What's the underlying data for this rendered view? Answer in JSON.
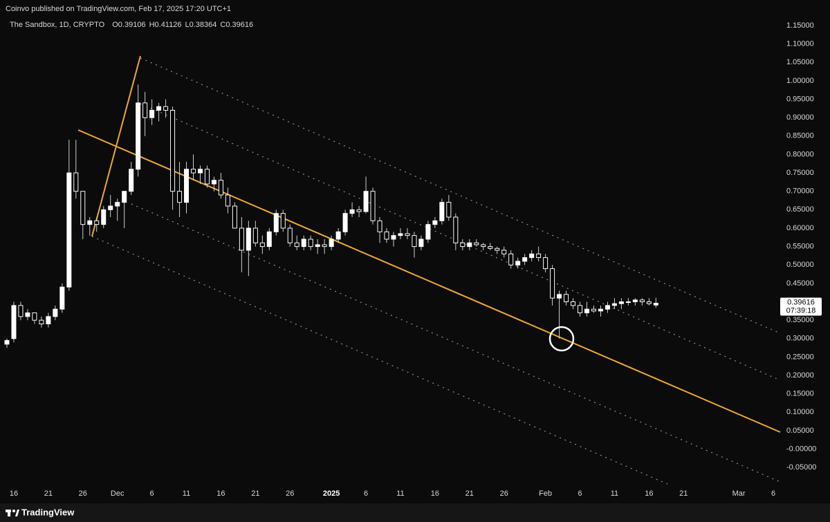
{
  "chart_data": {
    "type": "candlestick",
    "source": "Coinvo published on TradingView.com, Feb 17, 2025 17:20 UTC+1",
    "title": "The Sandbox, 1D, CRYPTO",
    "ohlc_prefixes": [
      "O",
      "H",
      "L",
      "C"
    ],
    "x": [
      "2024-11-15",
      "2024-11-16",
      "2024-11-17",
      "2024-11-18",
      "2024-11-19",
      "2024-11-20",
      "2024-11-21",
      "2024-11-22",
      "2024-11-23",
      "2024-11-24",
      "2024-11-25",
      "2024-11-26",
      "2024-11-27",
      "2024-11-28",
      "2024-11-29",
      "2024-11-30",
      "2024-12-01",
      "2024-12-02",
      "2024-12-03",
      "2024-12-04",
      "2024-12-05",
      "2024-12-06",
      "2024-12-07",
      "2024-12-08",
      "2024-12-09",
      "2024-12-10",
      "2024-12-11",
      "2024-12-12",
      "2024-12-13",
      "2024-12-14",
      "2024-12-15",
      "2024-12-16",
      "2024-12-17",
      "2024-12-18",
      "2024-12-19",
      "2024-12-20",
      "2024-12-21",
      "2024-12-22",
      "2024-12-23",
      "2024-12-24",
      "2024-12-25",
      "2024-12-26",
      "2024-12-27",
      "2024-12-28",
      "2024-12-29",
      "2024-12-30",
      "2024-12-31",
      "2025-01-01",
      "2025-01-02",
      "2025-01-03",
      "2025-01-04",
      "2025-01-05",
      "2025-01-06",
      "2025-01-07",
      "2025-01-08",
      "2025-01-09",
      "2025-01-10",
      "2025-01-11",
      "2025-01-12",
      "2025-01-13",
      "2025-01-14",
      "2025-01-15",
      "2025-01-16",
      "2025-01-17",
      "2025-01-18",
      "2025-01-19",
      "2025-01-20",
      "2025-01-21",
      "2025-01-22",
      "2025-01-23",
      "2025-01-24",
      "2025-01-25",
      "2025-01-26",
      "2025-01-27",
      "2025-01-28",
      "2025-01-29",
      "2025-01-30",
      "2025-01-31",
      "2025-02-01",
      "2025-02-02",
      "2025-02-03",
      "2025-02-04",
      "2025-02-05",
      "2025-02-06",
      "2025-02-07",
      "2025-02-08",
      "2025-02-09",
      "2025-02-10",
      "2025-02-11",
      "2025-02-12",
      "2025-02-13",
      "2025-02-14",
      "2025-02-15",
      "2025-02-16",
      "2025-02-17"
    ],
    "open": [
      0.285,
      0.3,
      0.39,
      0.36,
      0.37,
      0.35,
      0.34,
      0.36,
      0.38,
      0.44,
      0.75,
      0.7,
      0.61,
      0.62,
      0.61,
      0.65,
      0.66,
      0.67,
      0.7,
      0.76,
      0.94,
      0.9,
      0.92,
      0.93,
      0.92,
      0.7,
      0.67,
      0.76,
      0.75,
      0.76,
      0.72,
      0.73,
      0.69,
      0.66,
      0.6,
      0.54,
      0.6,
      0.56,
      0.55,
      0.59,
      0.64,
      0.6,
      0.56,
      0.55,
      0.57,
      0.55,
      0.555,
      0.55,
      0.57,
      0.59,
      0.64,
      0.65,
      0.645,
      0.7,
      0.62,
      0.59,
      0.57,
      0.58,
      0.585,
      0.58,
      0.55,
      0.57,
      0.61,
      0.62,
      0.67,
      0.63,
      0.56,
      0.55,
      0.56,
      0.555,
      0.55,
      0.545,
      0.54,
      0.53,
      0.5,
      0.51,
      0.52,
      0.53,
      0.52,
      0.49,
      0.41,
      0.42,
      0.4,
      0.39,
      0.37,
      0.38,
      0.375,
      0.38,
      0.39,
      0.395,
      0.4,
      0.4,
      0.405,
      0.4,
      0.39106
    ],
    "high": [
      0.3,
      0.4,
      0.4,
      0.38,
      0.37,
      0.36,
      0.37,
      0.39,
      0.45,
      0.84,
      0.84,
      0.7,
      0.63,
      0.63,
      0.66,
      0.69,
      0.68,
      0.7,
      0.78,
      0.99,
      0.97,
      0.95,
      0.94,
      0.95,
      0.93,
      0.78,
      0.78,
      0.8,
      0.77,
      0.77,
      0.74,
      0.75,
      0.71,
      0.67,
      0.63,
      0.62,
      0.62,
      0.58,
      0.6,
      0.65,
      0.65,
      0.61,
      0.58,
      0.58,
      0.58,
      0.57,
      0.57,
      0.58,
      0.6,
      0.65,
      0.67,
      0.66,
      0.74,
      0.71,
      0.63,
      0.6,
      0.59,
      0.6,
      0.6,
      0.59,
      0.58,
      0.62,
      0.63,
      0.68,
      0.69,
      0.64,
      0.57,
      0.57,
      0.57,
      0.56,
      0.56,
      0.55,
      0.55,
      0.54,
      0.52,
      0.53,
      0.54,
      0.55,
      0.53,
      0.5,
      0.43,
      0.43,
      0.41,
      0.4,
      0.4,
      0.39,
      0.39,
      0.4,
      0.41,
      0.41,
      0.41,
      0.41,
      0.41,
      0.41,
      0.41126
    ],
    "low": [
      0.275,
      0.29,
      0.35,
      0.35,
      0.34,
      0.33,
      0.33,
      0.35,
      0.37,
      0.43,
      0.68,
      0.57,
      0.58,
      0.59,
      0.6,
      0.63,
      0.62,
      0.6,
      0.69,
      0.74,
      0.85,
      0.88,
      0.89,
      0.9,
      0.65,
      0.63,
      0.64,
      0.73,
      0.72,
      0.71,
      0.7,
      0.68,
      0.64,
      0.6,
      0.48,
      0.47,
      0.55,
      0.53,
      0.54,
      0.58,
      0.59,
      0.55,
      0.54,
      0.54,
      0.54,
      0.53,
      0.53,
      0.54,
      0.56,
      0.58,
      0.63,
      0.63,
      0.64,
      0.61,
      0.56,
      0.56,
      0.55,
      0.57,
      0.57,
      0.52,
      0.54,
      0.56,
      0.6,
      0.61,
      0.62,
      0.54,
      0.54,
      0.54,
      0.55,
      0.54,
      0.54,
      0.53,
      0.52,
      0.49,
      0.49,
      0.5,
      0.51,
      0.51,
      0.48,
      0.39,
      0.3,
      0.39,
      0.38,
      0.36,
      0.36,
      0.37,
      0.36,
      0.37,
      0.38,
      0.38,
      0.39,
      0.39,
      0.39,
      0.39,
      0.38364
    ],
    "close": [
      0.295,
      0.39,
      0.36,
      0.37,
      0.35,
      0.34,
      0.36,
      0.38,
      0.44,
      0.75,
      0.7,
      0.61,
      0.62,
      0.61,
      0.65,
      0.66,
      0.67,
      0.7,
      0.76,
      0.94,
      0.9,
      0.92,
      0.93,
      0.92,
      0.7,
      0.67,
      0.76,
      0.75,
      0.76,
      0.72,
      0.73,
      0.69,
      0.66,
      0.6,
      0.54,
      0.6,
      0.56,
      0.55,
      0.59,
      0.64,
      0.6,
      0.56,
      0.55,
      0.57,
      0.55,
      0.555,
      0.55,
      0.57,
      0.59,
      0.64,
      0.65,
      0.645,
      0.7,
      0.62,
      0.59,
      0.57,
      0.58,
      0.585,
      0.58,
      0.55,
      0.57,
      0.61,
      0.62,
      0.67,
      0.63,
      0.56,
      0.55,
      0.56,
      0.555,
      0.55,
      0.545,
      0.54,
      0.53,
      0.5,
      0.51,
      0.52,
      0.53,
      0.52,
      0.49,
      0.41,
      0.42,
      0.4,
      0.39,
      0.37,
      0.38,
      0.375,
      0.38,
      0.39,
      0.395,
      0.4,
      0.4,
      0.405,
      0.4,
      0.395,
      0.39616
    ],
    "up_color": "#ffffff",
    "down_color": "#000000",
    "countdown": "07:39:18",
    "brand": "TradingView",
    "grid": false,
    "xlim": [
      "2024-11-14",
      "2025-03-07"
    ],
    "xticks": [
      {
        "value": "2024-11-16",
        "label": "16"
      },
      {
        "value": "2024-11-21",
        "label": "21"
      },
      {
        "value": "2024-11-26",
        "label": "26"
      },
      {
        "value": "2024-12-01",
        "label": "Dec"
      },
      {
        "value": "2024-12-06",
        "label": "6"
      },
      {
        "value": "2024-12-11",
        "label": "11"
      },
      {
        "value": "2024-12-16",
        "label": "16"
      },
      {
        "value": "2024-12-21",
        "label": "21"
      },
      {
        "value": "2024-12-26",
        "label": "26"
      },
      {
        "value": "2025-01-01",
        "label": "2025"
      },
      {
        "value": "2025-01-06",
        "label": "6"
      },
      {
        "value": "2025-01-11",
        "label": "11"
      },
      {
        "value": "2025-01-16",
        "label": "16"
      },
      {
        "value": "2025-01-21",
        "label": "21"
      },
      {
        "value": "2025-01-26",
        "label": "26"
      },
      {
        "value": "2025-02-01",
        "label": "Feb"
      },
      {
        "value": "2025-02-06",
        "label": "6"
      },
      {
        "value": "2025-02-11",
        "label": "11"
      },
      {
        "value": "2025-02-16",
        "label": "16"
      },
      {
        "value": "2025-02-21",
        "label": "21"
      },
      {
        "value": "2025-03-01",
        "label": "Mar"
      },
      {
        "value": "2025-03-06",
        "label": "6"
      }
    ],
    "ylim": [
      -0.104,
      1.1725
    ],
    "yticks": [
      {
        "value": 1.15,
        "label": "1.15000"
      },
      {
        "value": 1.1,
        "label": "1.10000"
      },
      {
        "value": 1.05,
        "label": "1.05000"
      },
      {
        "value": 1,
        "label": "1.00000"
      },
      {
        "value": 0.95,
        "label": "0.95000"
      },
      {
        "value": 0.9,
        "label": "0.90000"
      },
      {
        "value": 0.85,
        "label": "0.85000"
      },
      {
        "value": 0.8,
        "label": "0.80000"
      },
      {
        "value": 0.75,
        "label": "0.75000"
      },
      {
        "value": 0.7,
        "label": "0.70000"
      },
      {
        "value": 0.65,
        "label": "0.65000"
      },
      {
        "value": 0.6,
        "label": "0.60000"
      },
      {
        "value": 0.55,
        "label": "0.55000"
      },
      {
        "value": 0.5,
        "label": "0.50000"
      },
      {
        "value": 0.45,
        "label": "0.45000"
      },
      {
        "value": 0.35,
        "label": "0.35000"
      },
      {
        "value": 0.3,
        "label": "0.30000"
      },
      {
        "value": 0.25,
        "label": "0.25000"
      },
      {
        "value": 0.2,
        "label": "0.20000"
      },
      {
        "value": 0.15,
        "label": "0.15000"
      },
      {
        "value": 0.1,
        "label": "0.10000"
      },
      {
        "value": 0.05,
        "label": "0.05000"
      },
      {
        "value": 0,
        "label": "-0.00000"
      },
      {
        "value": -0.05,
        "label": "-0.05000"
      }
    ]
  }
}
